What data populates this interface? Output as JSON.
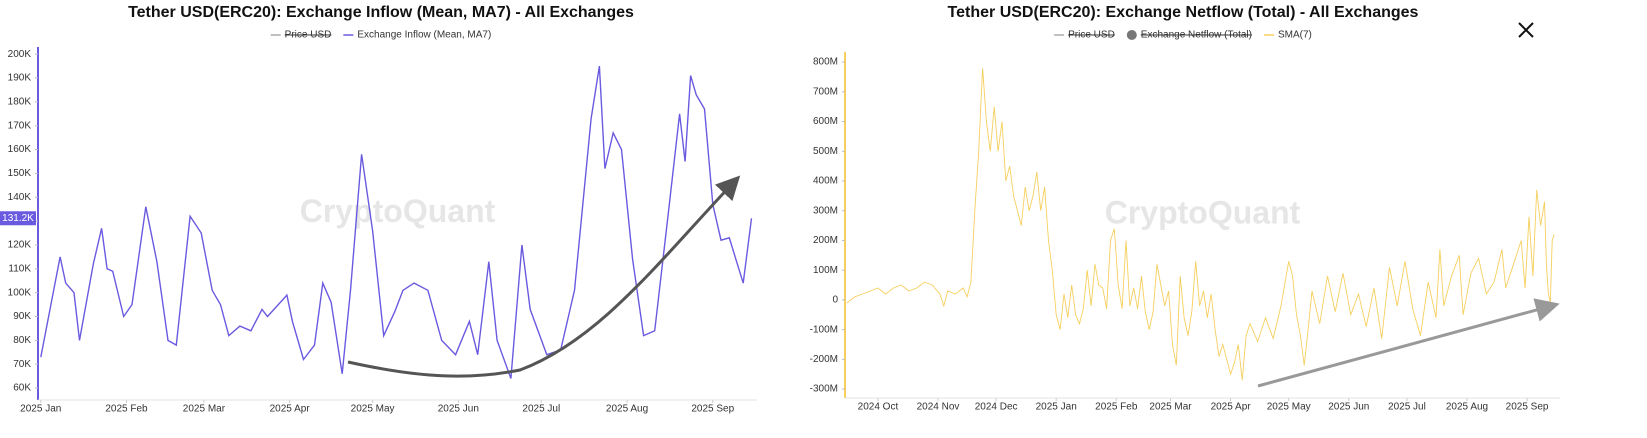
{
  "chart_data": [
    {
      "type": "line",
      "title": "Tether USD(ERC20): Exchange Inflow (Mean, MA7) - All Exchanges",
      "watermark": "CryptoQuant",
      "hidden_series": [
        {
          "name": "Price USD",
          "marker": "line"
        }
      ],
      "series": [
        {
          "name": "Exchange Inflow (Mean, MA7)",
          "color": "#6a5ae0",
          "marker": "line",
          "current_label": "131.2K",
          "x": [
            0,
            7,
            9,
            12,
            14,
            19,
            22,
            24,
            26,
            30,
            33,
            38,
            42,
            46,
            49,
            54,
            58,
            62,
            65,
            68,
            72,
            76,
            80,
            82,
            89,
            91,
            95,
            99,
            102,
            105,
            109,
            112,
            116,
            120,
            124,
            128,
            131,
            135,
            140,
            145,
            150,
            155,
            158,
            162,
            165,
            170,
            174,
            177,
            183,
            188,
            193,
            199,
            202,
            204,
            207,
            210,
            214,
            218,
            222,
            227,
            231,
            233,
            235,
            237,
            240,
            243,
            246,
            249,
            254,
            257
          ],
          "values": [
            73,
            115,
            104,
            100,
            80,
            112,
            127,
            110,
            109,
            90,
            95,
            136,
            113,
            80,
            78,
            132,
            125,
            101,
            95,
            82,
            86,
            84,
            93,
            90,
            99,
            88,
            72,
            78,
            104,
            96,
            66,
            101,
            158,
            126,
            82,
            92,
            101,
            104,
            101,
            80,
            74,
            88,
            74,
            113,
            80,
            64,
            120,
            93,
            74,
            76,
            101,
            173,
            195,
            152,
            167,
            160,
            114,
            82,
            84,
            134,
            175,
            155,
            191,
            183,
            177,
            137,
            122,
            123,
            104,
            131.2
          ]
        }
      ],
      "xlim": [
        -1,
        259
      ],
      "xticks": [
        {
          "value": 0,
          "label": "2025 Jan"
        },
        {
          "value": 31,
          "label": "2025 Feb"
        },
        {
          "value": 59,
          "label": "2025 Mar"
        },
        {
          "value": 90,
          "label": "2025 Apr"
        },
        {
          "value": 120,
          "label": "2025 May"
        },
        {
          "value": 151,
          "label": "2025 Jun"
        },
        {
          "value": 181,
          "label": "2025 Jul"
        },
        {
          "value": 212,
          "label": "2025 Aug"
        },
        {
          "value": 243,
          "label": "2025 Sep"
        }
      ],
      "ylim": [
        55,
        203
      ],
      "yticks": [
        {
          "value": 60,
          "label": "60K"
        },
        {
          "value": 70,
          "label": "70K"
        },
        {
          "value": 80,
          "label": "80K"
        },
        {
          "value": 90,
          "label": "90K"
        },
        {
          "value": 100,
          "label": "100K"
        },
        {
          "value": 110,
          "label": "110K"
        },
        {
          "value": 120,
          "label": "120K"
        },
        {
          "value": 130,
          "label": "130K"
        },
        {
          "value": 140,
          "label": "140K"
        },
        {
          "value": 150,
          "label": "150K"
        },
        {
          "value": 160,
          "label": "160K"
        },
        {
          "value": 170,
          "label": "170K"
        },
        {
          "value": 180,
          "label": "180K"
        },
        {
          "value": 190,
          "label": "190K"
        },
        {
          "value": 200,
          "label": "200K"
        }
      ],
      "grid": false
    },
    {
      "type": "line",
      "title": "Tether USD(ERC20): Exchange Netflow (Total) - All Exchanges",
      "watermark": "CryptoQuant",
      "hidden_series": [
        {
          "name": "Price USD",
          "marker": "line"
        },
        {
          "name": "Exchange Netflow (Total)",
          "marker": "circle"
        }
      ],
      "series": [
        {
          "name": "SMA(7)",
          "color": "#f6cf5e",
          "marker": "line",
          "x": [
            -16,
            -12,
            -8,
            -4,
            0,
            4,
            8,
            12,
            16,
            20,
            24,
            28,
            32,
            34,
            36,
            40,
            44,
            46,
            48,
            50,
            52,
            54,
            56,
            58,
            60,
            62,
            64,
            66,
            68,
            70,
            72,
            74,
            76,
            78,
            80,
            82,
            84,
            86,
            88,
            90,
            92,
            94,
            96,
            98,
            100,
            102,
            104,
            106,
            108,
            110,
            112,
            114,
            116,
            118,
            120,
            122,
            124,
            126,
            128,
            130,
            132,
            134,
            136,
            138,
            140,
            142,
            144,
            146,
            148,
            150,
            152,
            154,
            156,
            158,
            160,
            162,
            164,
            166,
            168,
            170,
            172,
            174,
            176,
            178,
            180,
            182,
            184,
            186,
            188,
            190,
            192,
            196,
            200,
            204,
            208,
            212,
            214,
            216,
            218,
            220,
            222,
            224,
            228,
            232,
            236,
            240,
            244,
            248,
            252,
            256,
            260,
            264,
            268,
            272,
            276,
            280,
            284,
            288,
            290,
            292,
            296,
            300,
            302,
            306,
            310,
            314,
            318,
            322,
            324,
            328,
            332,
            334,
            336,
            338,
            340,
            342,
            344,
            345,
            346,
            347,
            348,
            349
          ],
          "values": [
            -10,
            10,
            20,
            30,
            40,
            20,
            40,
            50,
            30,
            40,
            60,
            50,
            20,
            -20,
            30,
            20,
            40,
            10,
            60,
            300,
            500,
            780,
            600,
            500,
            650,
            500,
            600,
            400,
            450,
            350,
            300,
            250,
            380,
            300,
            350,
            430,
            300,
            380,
            200,
            100,
            -50,
            -100,
            20,
            -60,
            50,
            -50,
            -80,
            -30,
            100,
            -20,
            120,
            50,
            40,
            -30,
            200,
            240,
            50,
            -30,
            200,
            -20,
            40,
            -30,
            80,
            -40,
            -100,
            -40,
            120,
            50,
            -20,
            30,
            -150,
            -220,
            80,
            -60,
            -120,
            -40,
            130,
            -20,
            30,
            -60,
            20,
            -100,
            -190,
            -150,
            -200,
            -250,
            -210,
            -150,
            -270,
            -120,
            -80,
            -140,
            -60,
            -130,
            -20,
            130,
            80,
            -50,
            -120,
            -220,
            -100,
            30,
            -80,
            80,
            -40,
            90,
            -50,
            20,
            -90,
            40,
            -130,
            110,
            -20,
            130,
            -30,
            -120,
            60,
            -60,
            170,
            -20,
            80,
            150,
            -50,
            90,
            140,
            20,
            60,
            170,
            40,
            120,
            200,
            40,
            280,
            80,
            370,
            250,
            330,
            120,
            20,
            -10,
            200,
            220
          ]
        }
      ],
      "xlim": [
        -17,
        352
      ],
      "xticks": [
        {
          "value": 0,
          "label": "2024 Oct"
        },
        {
          "value": 31,
          "label": "2024 Nov"
        },
        {
          "value": 61,
          "label": "2024 Dec"
        },
        {
          "value": 92,
          "label": "2025 Jan"
        },
        {
          "value": 123,
          "label": "2025 Feb"
        },
        {
          "value": 151,
          "label": "2025 Mar"
        },
        {
          "value": 182,
          "label": "2025 Apr"
        },
        {
          "value": 212,
          "label": "2025 May"
        },
        {
          "value": 243,
          "label": "2025 Jun"
        },
        {
          "value": 273,
          "label": "2025 Jul"
        },
        {
          "value": 304,
          "label": "2025 Aug"
        },
        {
          "value": 335,
          "label": "2025 Sep"
        }
      ],
      "ylim": [
        -330,
        834
      ],
      "yticks": [
        {
          "value": -300,
          "label": "-300M"
        },
        {
          "value": -200,
          "label": "-200M"
        },
        {
          "value": -100,
          "label": "-100M"
        },
        0,
        {
          "value": 100,
          "label": "100M"
        },
        {
          "value": 200,
          "label": "200M"
        },
        {
          "value": 300,
          "label": "300M"
        },
        {
          "value": 400,
          "label": "400M"
        },
        {
          "value": 500,
          "label": "500M"
        },
        {
          "value": 600,
          "label": "600M"
        },
        {
          "value": 700,
          "label": "700M"
        },
        {
          "value": 800,
          "label": "800M"
        }
      ],
      "grid": false
    }
  ]
}
